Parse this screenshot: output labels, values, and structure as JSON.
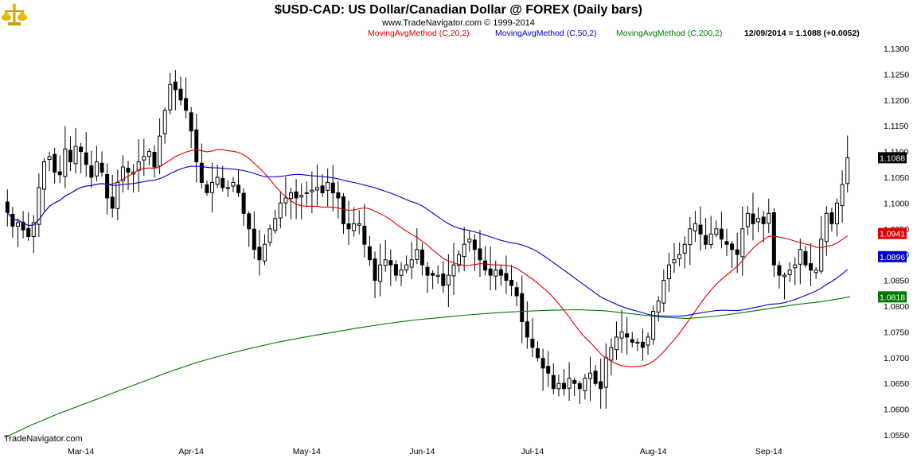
{
  "header": {
    "title": "$USD-CAD:  US Dollar/Canadian Dollar @ FOREX  (Daily bars)",
    "subtitle": "www.TradeNavigator.com © 1999-2014",
    "watermark": "TradeNavigator.com",
    "logo_icon": "gold-scale-logo-icon"
  },
  "legend": [
    {
      "label": "MovingAvgMethod (C,20,2)",
      "color": "#e00000"
    },
    {
      "label": "MovingAvgMethod (C,50,2)",
      "color": "#0000cc"
    },
    {
      "label": "MovingAvgMethod (C,200,2)",
      "color": "#007700"
    },
    {
      "label": "12/09/2014 = 1.1088 (+0.0052)",
      "color": "#000000"
    }
  ],
  "badges": [
    {
      "label": "1.1088",
      "value": 1.1088,
      "bg": "#000000",
      "fg": "#ffffff"
    },
    {
      "label": "1.0941",
      "value": 1.0941,
      "bg": "#dd0000",
      "fg": "#ffffff"
    },
    {
      "label": "1.0896",
      "value": 1.0896,
      "bg": "#0000cc",
      "fg": "#ffffff"
    },
    {
      "label": "1.0818",
      "value": 1.0818,
      "bg": "#007700",
      "fg": "#ffffff"
    }
  ],
  "chart_data": {
    "type": "candlestick",
    "ylim": [
      1.053,
      1.132
    ],
    "y_ticks": [
      "1.1300",
      "1.1250",
      "1.1200",
      "1.1150",
      "1.1100",
      "1.1050",
      "1.1000",
      "1.0950",
      "1.0900",
      "1.0850",
      "1.0800",
      "1.0750",
      "1.0700",
      "1.0650",
      "1.0600",
      "1.0550"
    ],
    "x_ticks": [
      {
        "label": "Mar-14",
        "index": 14
      },
      {
        "label": "Apr-14",
        "index": 35
      },
      {
        "label": "May-14",
        "index": 57
      },
      {
        "label": "Jun-14",
        "index": 79
      },
      {
        "label": "Jul-14",
        "index": 100
      },
      {
        "label": "Aug-14",
        "index": 123
      },
      {
        "label": "Sep-14",
        "index": 145
      }
    ],
    "close": [
      1.0982,
      1.0955,
      1.0962,
      1.0948,
      1.0935,
      1.0962,
      1.103,
      1.108,
      1.109,
      1.106,
      1.1055,
      1.1105,
      1.108,
      1.111,
      1.11,
      1.1075,
      1.105,
      1.108,
      1.106,
      1.101,
      1.099,
      1.104,
      1.107,
      1.106,
      1.106,
      1.108,
      1.109,
      1.11,
      1.107,
      1.113,
      1.118,
      1.123,
      1.122,
      1.12,
      1.118,
      1.114,
      1.108,
      1.104,
      1.102,
      1.104,
      1.105,
      1.103,
      1.103,
      1.104,
      1.102,
      1.098,
      1.095,
      1.091,
      1.089,
      1.092,
      1.095,
      1.097,
      1.1,
      1.101,
      1.102,
      1.101,
      1.1015,
      1.102,
      1.1025,
      1.103,
      1.102,
      1.104,
      1.102,
      1.101,
      1.096,
      1.095,
      1.096,
      1.096,
      1.092,
      1.089,
      1.085,
      1.088,
      1.089,
      1.088,
      1.086,
      1.087,
      1.088,
      1.089,
      1.091,
      1.088,
      1.086,
      1.086,
      1.086,
      1.084,
      1.086,
      1.088,
      1.09,
      1.092,
      1.093,
      1.091,
      1.089,
      1.087,
      1.086,
      1.087,
      1.086,
      1.085,
      1.084,
      1.082,
      1.077,
      1.074,
      1.072,
      1.07,
      1.068,
      1.067,
      1.064,
      1.065,
      1.064,
      1.066,
      1.065,
      1.064,
      1.066,
      1.067,
      1.065,
      1.064,
      1.07,
      1.072,
      1.074,
      1.075,
      1.074,
      1.073,
      1.073,
      1.072,
      1.074,
      1.079,
      1.081,
      1.085,
      1.088,
      1.089,
      1.09,
      1.092,
      1.095,
      1.096,
      1.094,
      1.092,
      1.094,
      1.095,
      1.093,
      1.092,
      1.091,
      1.09,
      1.095,
      1.098,
      1.096,
      1.097,
      1.096,
      1.098,
      1.088,
      1.086,
      1.086,
      1.087,
      1.088,
      1.091,
      1.088,
      1.087,
      1.087,
      1.093,
      1.098,
      1.096,
      1.1,
      1.1036,
      1.1088
    ],
    "series": [
      {
        "name": "MovingAvgMethod (C,20,2)",
        "period": 20,
        "color": "#e00000"
      },
      {
        "name": "MovingAvgMethod (C,50,2)",
        "period": 50,
        "color": "#0000cc"
      },
      {
        "name": "MovingAvgMethod (C,200,2)",
        "color": "#007700",
        "values": [
          1.0545,
          1.057,
          1.0592,
          1.0612,
          1.0632,
          1.0652,
          1.0672,
          1.069,
          1.0705,
          1.0718,
          1.073,
          1.074,
          1.0749,
          1.0758,
          1.0766,
          1.0773,
          1.0778,
          1.0783,
          1.0787,
          1.079,
          1.0792,
          1.0793,
          1.0791,
          1.0785,
          1.0779,
          1.0776,
          1.078,
          1.0787,
          1.0795,
          1.0803,
          1.0809,
          1.0818
        ]
      }
    ],
    "grid": false
  }
}
